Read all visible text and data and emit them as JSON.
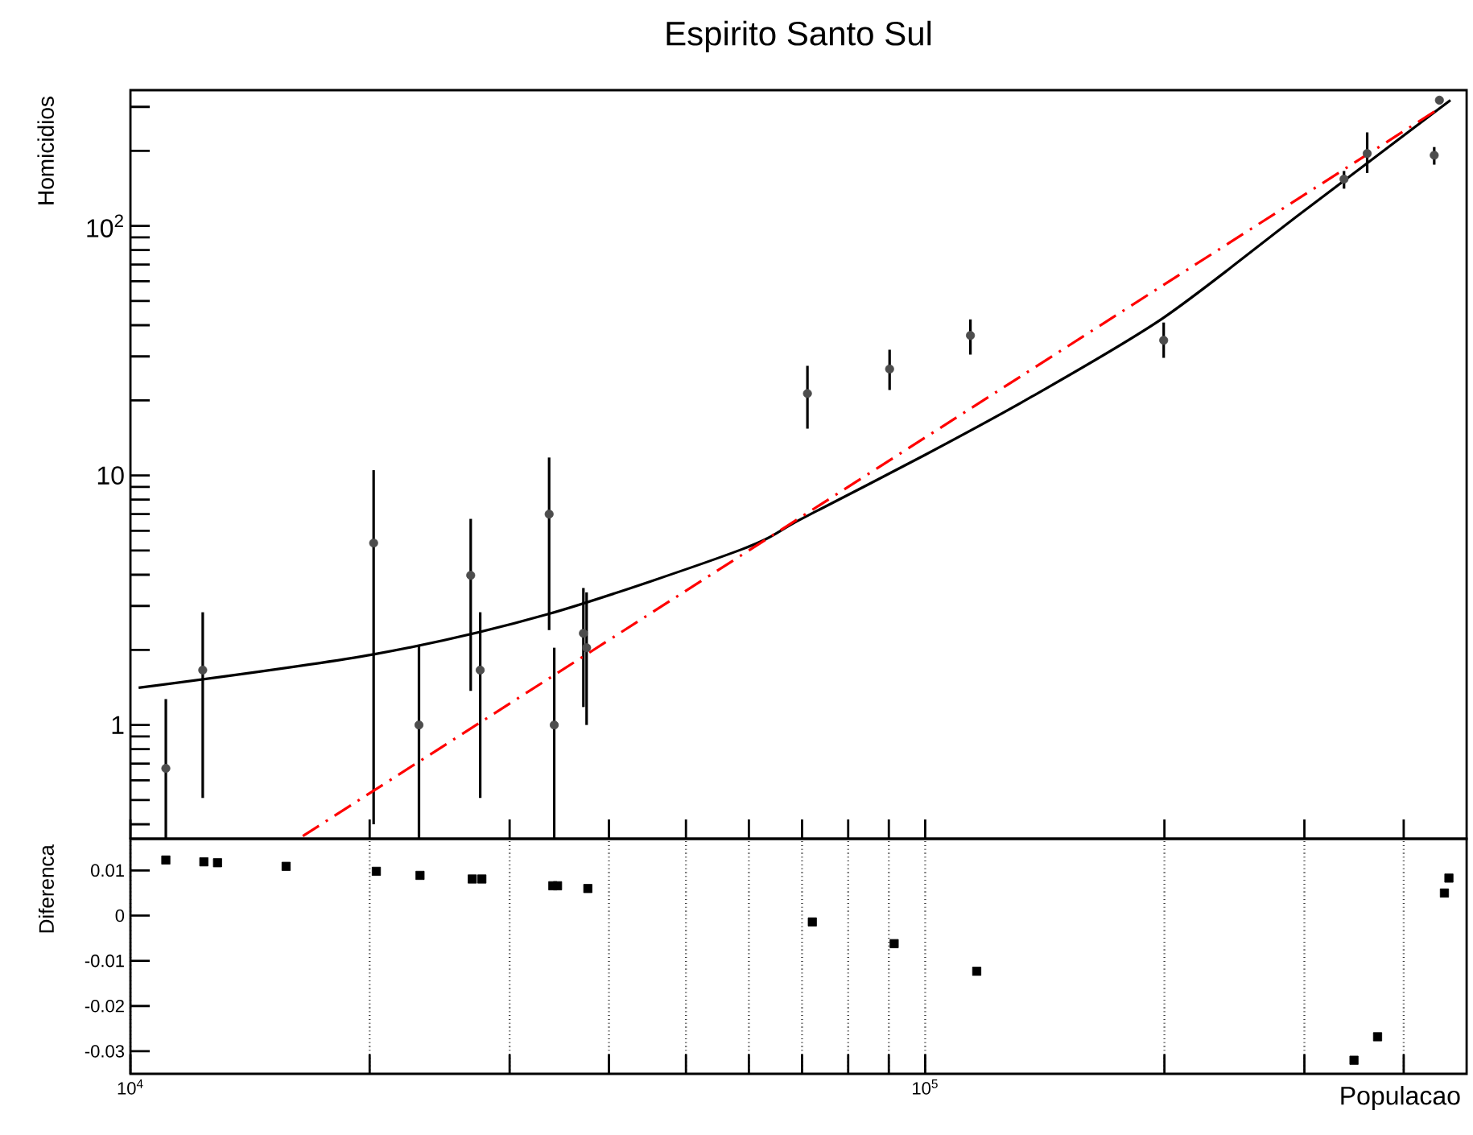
{
  "chart_data": [
    {
      "type": "scatter",
      "title": "Espirito Santo Sul",
      "ylabel": "Homicidios",
      "log": "xy",
      "marker": "circle",
      "xlim": [
        10000,
        480000
      ],
      "ylim": [
        0.35,
        350
      ],
      "tick_labels": "y",
      "xticks": [
        {
          "value": 10000,
          "label": null
        },
        {
          "value": 20000,
          "label": null
        },
        {
          "value": 30000,
          "label": null
        },
        {
          "value": 40000,
          "label": null
        },
        {
          "value": 50000,
          "label": null
        },
        {
          "value": 60000,
          "label": null
        },
        {
          "value": 70000,
          "label": null
        },
        {
          "value": 80000,
          "label": null
        },
        {
          "value": 90000,
          "label": null
        },
        {
          "value": 100000,
          "label": null
        },
        {
          "value": 200000,
          "label": null
        },
        {
          "value": 300000,
          "label": null
        },
        {
          "value": 400000,
          "label": null
        }
      ],
      "yticks": [
        {
          "value": 0.4,
          "label": null
        },
        {
          "value": 0.5,
          "label": null
        },
        {
          "value": 0.6,
          "label": null
        },
        {
          "value": 0.7,
          "label": null
        },
        {
          "value": 0.8,
          "label": null
        },
        {
          "value": 0.9,
          "label": null
        },
        1,
        {
          "value": 2,
          "label": null
        },
        {
          "value": 3,
          "label": null
        },
        {
          "value": 4,
          "label": null
        },
        {
          "value": 5,
          "label": null
        },
        {
          "value": 6,
          "label": null
        },
        {
          "value": 7,
          "label": null
        },
        {
          "value": 8,
          "label": null
        },
        {
          "value": 9,
          "label": null
        },
        10,
        {
          "value": 20,
          "label": null
        },
        {
          "value": 30,
          "label": null
        },
        {
          "value": 40,
          "label": null
        },
        {
          "value": 50,
          "label": null
        },
        {
          "value": 60,
          "label": null
        },
        {
          "value": 70,
          "label": null
        },
        {
          "value": 80,
          "label": null
        },
        {
          "value": 90,
          "label": null
        },
        {
          "value": 100,
          "label": "10$^{2}$"
        },
        {
          "value": 200,
          "label": null
        },
        {
          "value": 300,
          "label": null
        }
      ],
      "series": [
        {
          "type": "scatter",
          "color": "#4d4d4d",
          "x": [
            11080,
            12330,
            20230,
            23070,
            26800,
            27550,
            33640,
            34140,
            37150,
            37500,
            71100,
            90200,
            114000,
            199600,
            336500,
            359900,
            437000,
            443600
          ],
          "values": [
            0.67,
            1.66,
            5.36,
            1,
            3.98,
            1.66,
            7.0,
            1,
            2.33,
            2.04,
            21.3,
            26.7,
            36.4,
            34.8,
            154,
            195,
            192,
            319
          ],
          "errors": [
            [
              0.35,
              1.27
            ],
            [
              0.51,
              2.83
            ],
            [
              0.4,
              10.5
            ],
            [
              0.35,
              2.07
            ],
            [
              1.37,
              6.7
            ],
            [
              0.51,
              2.83
            ],
            [
              2.4,
              11.8
            ],
            [
              0.35,
              2.04
            ],
            [
              1.18,
              3.54
            ],
            [
              1.0,
              3.4
            ],
            [
              15.4,
              27.5
            ],
            [
              22,
              31.9
            ],
            [
              30.5,
              42.2
            ],
            [
              29.6,
              41
            ],
            [
              141,
              166
            ],
            [
              163,
              237
            ],
            [
              176,
              207
            ],
            [
              309,
              329
            ]
          ]
        },
        {
          "type": "line",
          "color": "#000000",
          "marker": "none",
          "x": [
            10240,
            20230,
            33640,
            58720,
            69870,
            100000,
            136200,
            199600,
            297400,
            458000
          ],
          "values": [
            1.41,
            1.92,
            2.79,
            5.05,
            6.7,
            12.1,
            20.7,
            42.9,
            112.7,
            319
          ]
        },
        {
          "type": "line",
          "color": "#ff0000",
          "marker": "none",
          "line_style": "dashed",
          "x": [
            16480,
            443600
          ],
          "values": [
            0.359,
            296
          ]
        }
      ]
    },
    {
      "type": "scatter",
      "xlabel": "Populacao",
      "ylabel": "Diferenca",
      "log": "x",
      "grid": "x",
      "marker": "square",
      "color": "#000000",
      "xlim": [
        10000,
        480000
      ],
      "ylim": [
        -0.035,
        0.017
      ],
      "xticks": [
        {
          "value": 10000,
          "label": "10$^{4}$"
        },
        {
          "value": 20000,
          "label": null
        },
        {
          "value": 30000,
          "label": null
        },
        {
          "value": 40000,
          "label": null
        },
        {
          "value": 50000,
          "label": null
        },
        {
          "value": 60000,
          "label": null
        },
        {
          "value": 70000,
          "label": null
        },
        {
          "value": 80000,
          "label": null
        },
        {
          "value": 90000,
          "label": null
        },
        {
          "value": 100000,
          "label": "10$^{5}$"
        },
        {
          "value": 200000,
          "label": null
        },
        {
          "value": 300000,
          "label": null
        },
        {
          "value": 400000,
          "label": null
        }
      ],
      "yticks": [
        0.01,
        0,
        -0.01,
        -0.02,
        -0.03
      ],
      "x": [
        11080,
        12370,
        12870,
        15700,
        20390,
        23140,
        26920,
        27680,
        34000,
        34470,
        37630,
        72110,
        91400,
        116100,
        346400,
        370900,
        450100,
        456000
      ],
      "values": [
        0.0123,
        0.0119,
        0.0117,
        0.0109,
        0.0098,
        0.0089,
        0.0081,
        0.0081,
        0.0066,
        0.0066,
        0.006,
        -0.0014,
        -0.0062,
        -0.0123,
        -0.032,
        -0.0268,
        0.005,
        0.0083
      ]
    }
  ]
}
